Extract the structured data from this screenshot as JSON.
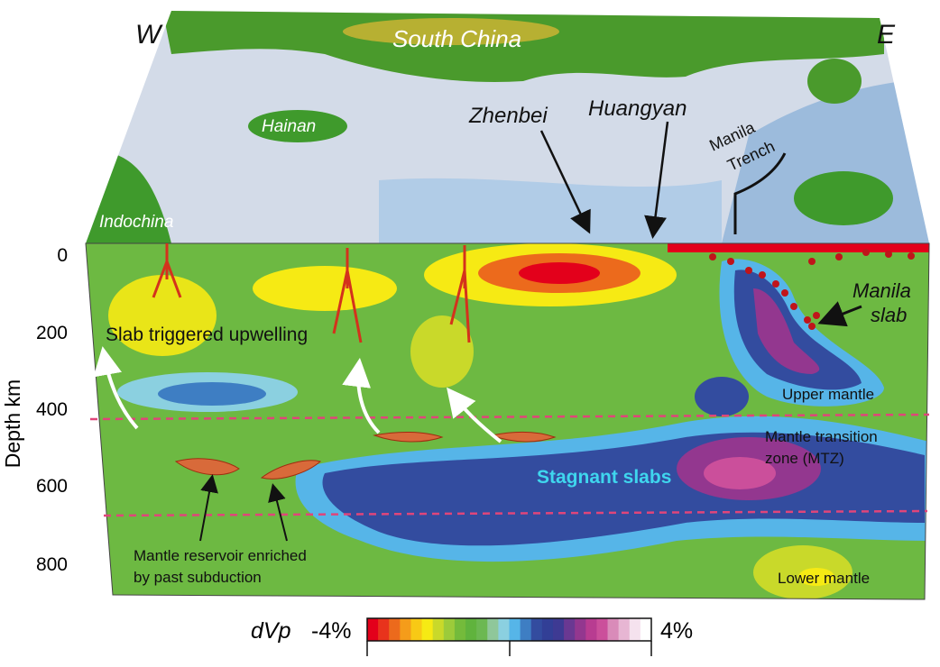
{
  "map": {
    "west_label": "W",
    "east_label": "E",
    "regions": {
      "south_china": "South China",
      "hainan": "Hainan",
      "indochina": "Indochina",
      "zhenbei": "Zhenbei",
      "huangyan": "Huangyan",
      "manila_trench_1": "Manila",
      "manila_trench_2": "Trench"
    }
  },
  "section": {
    "axis_label": "Depth km",
    "depth_ticks": [
      "0",
      "200",
      "400",
      "600",
      "800"
    ],
    "annotations": {
      "upwelling": "Slab triggered upwelling",
      "manila_slab_1": "Manila",
      "manila_slab_2": "slab",
      "upper_mantle": "Upper mantle",
      "mtz_1": "Mantle transition",
      "mtz_2": "zone (MTZ)",
      "stagnant": "Stagnant slabs",
      "reservoir_1": "Mantle reservoir enriched",
      "reservoir_2": "by past subduction",
      "lower_mantle": "Lower mantle"
    }
  },
  "colorbar": {
    "label": "dVp",
    "min_label": "-4%",
    "max_label": "4%",
    "colors": [
      "#e3001b",
      "#e8331c",
      "#ec6a1c",
      "#f59c1a",
      "#f8c915",
      "#f6ea14",
      "#c9d92a",
      "#9ccb3a",
      "#74bb3b",
      "#60b33d",
      "#6cb852",
      "#8fc79a",
      "#8bd0e0",
      "#56b5e8",
      "#3e7ec3",
      "#334c9f",
      "#323f96",
      "#3e3a93",
      "#6a3892",
      "#93378f",
      "#b83c91",
      "#cb4f9b",
      "#d98bb9",
      "#e7b6d3",
      "#f5e2ee",
      "#ffffff"
    ]
  }
}
